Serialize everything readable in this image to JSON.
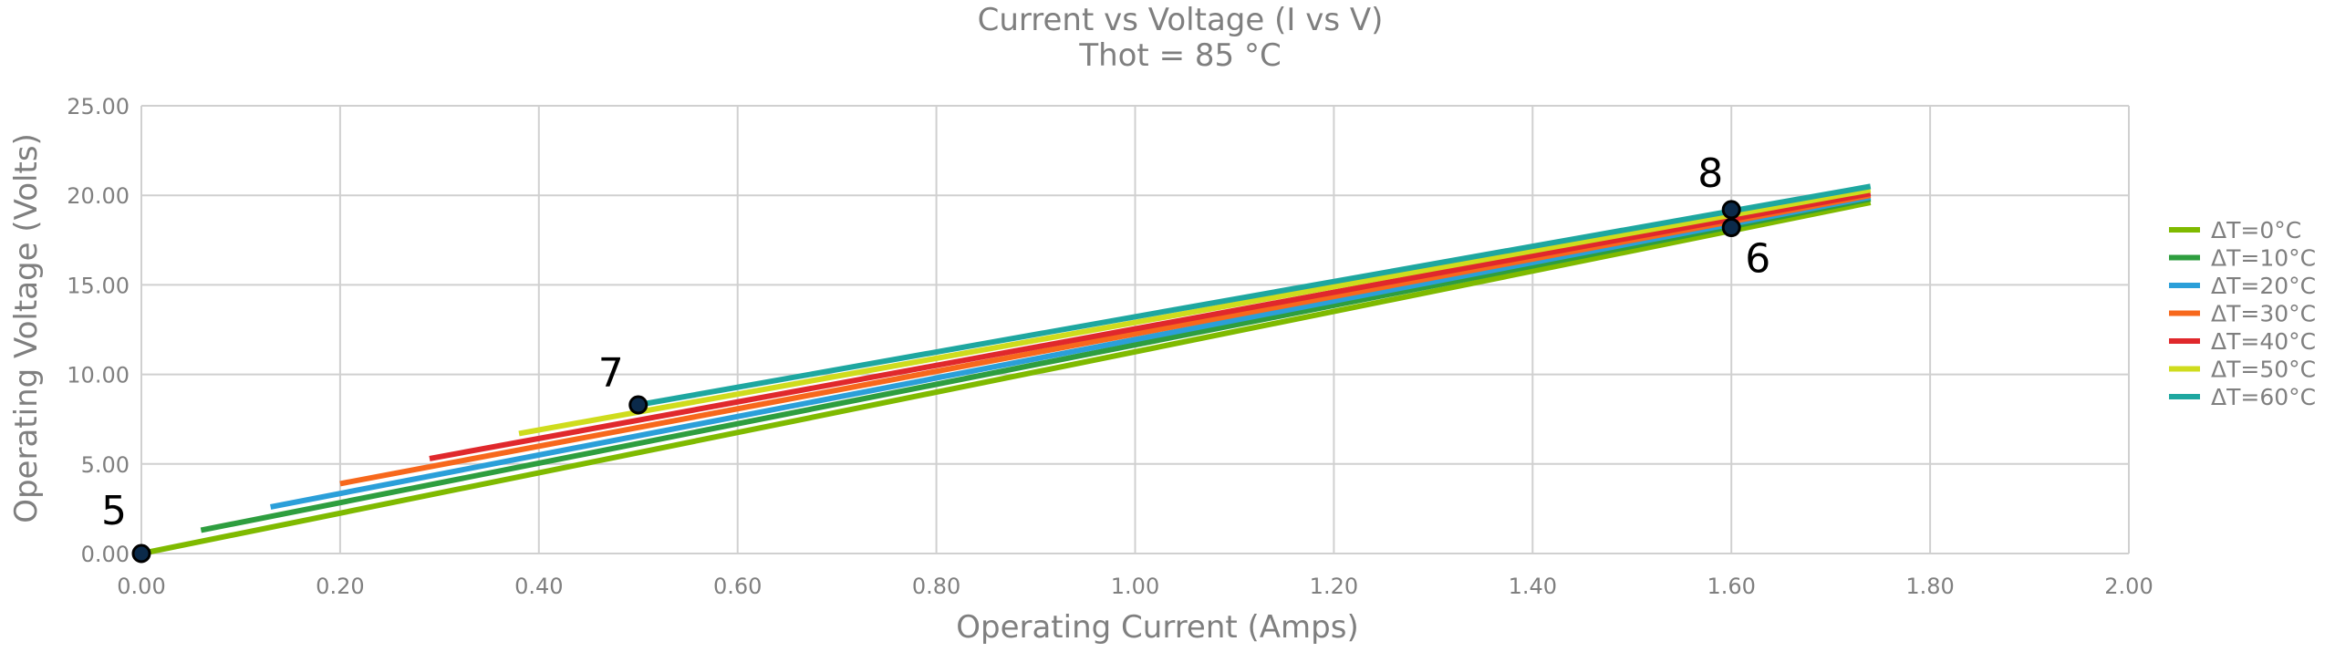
{
  "chart_data": {
    "type": "line",
    "title": "Current vs Voltage (I vs V)",
    "subtitle": "Thot = 85 °C",
    "xlabel": "Operating Current (Amps)",
    "ylabel": "Operating Voltage (Volts)",
    "xlim": [
      0,
      2
    ],
    "ylim": [
      0,
      25
    ],
    "xticks": [
      "0.00",
      "0.20",
      "0.40",
      "0.60",
      "0.80",
      "1.00",
      "1.20",
      "1.40",
      "1.60",
      "1.80",
      "2.00"
    ],
    "yticks": [
      "0.00",
      "5.00",
      "10.00",
      "15.00",
      "20.00",
      "25.00"
    ],
    "grid": true,
    "legend_position": "right",
    "series": [
      {
        "name": "ΔT=0°C",
        "color": "#7fba00",
        "x": [
          0.0,
          1.74
        ],
        "y": [
          0.0,
          19.6
        ]
      },
      {
        "name": "ΔT=10°C",
        "color": "#2e9e3f",
        "x": [
          0.06,
          1.74
        ],
        "y": [
          1.3,
          19.8
        ]
      },
      {
        "name": "ΔT=20°C",
        "color": "#2b9fd9",
        "x": [
          0.13,
          1.74
        ],
        "y": [
          2.6,
          19.9
        ]
      },
      {
        "name": "ΔT=30°C",
        "color": "#f7681c",
        "x": [
          0.2,
          1.74
        ],
        "y": [
          3.9,
          20.0
        ]
      },
      {
        "name": "ΔT=40°C",
        "color": "#e0282c",
        "x": [
          0.29,
          1.74
        ],
        "y": [
          5.3,
          20.1
        ]
      },
      {
        "name": "ΔT=50°C",
        "color": "#cfdc1d",
        "x": [
          0.38,
          1.74
        ],
        "y": [
          6.7,
          20.3
        ]
      },
      {
        "name": "ΔT=60°C",
        "color": "#1ea7a0",
        "x": [
          0.5,
          1.74
        ],
        "y": [
          8.3,
          20.5
        ]
      }
    ],
    "annotations": [
      {
        "label": "5",
        "x": 0.0,
        "y": 0.0
      },
      {
        "label": "7",
        "x": 0.5,
        "y": 8.3
      },
      {
        "label": "8",
        "x": 1.6,
        "y": 19.2
      },
      {
        "label": "6",
        "x": 1.6,
        "y": 18.2
      }
    ]
  }
}
